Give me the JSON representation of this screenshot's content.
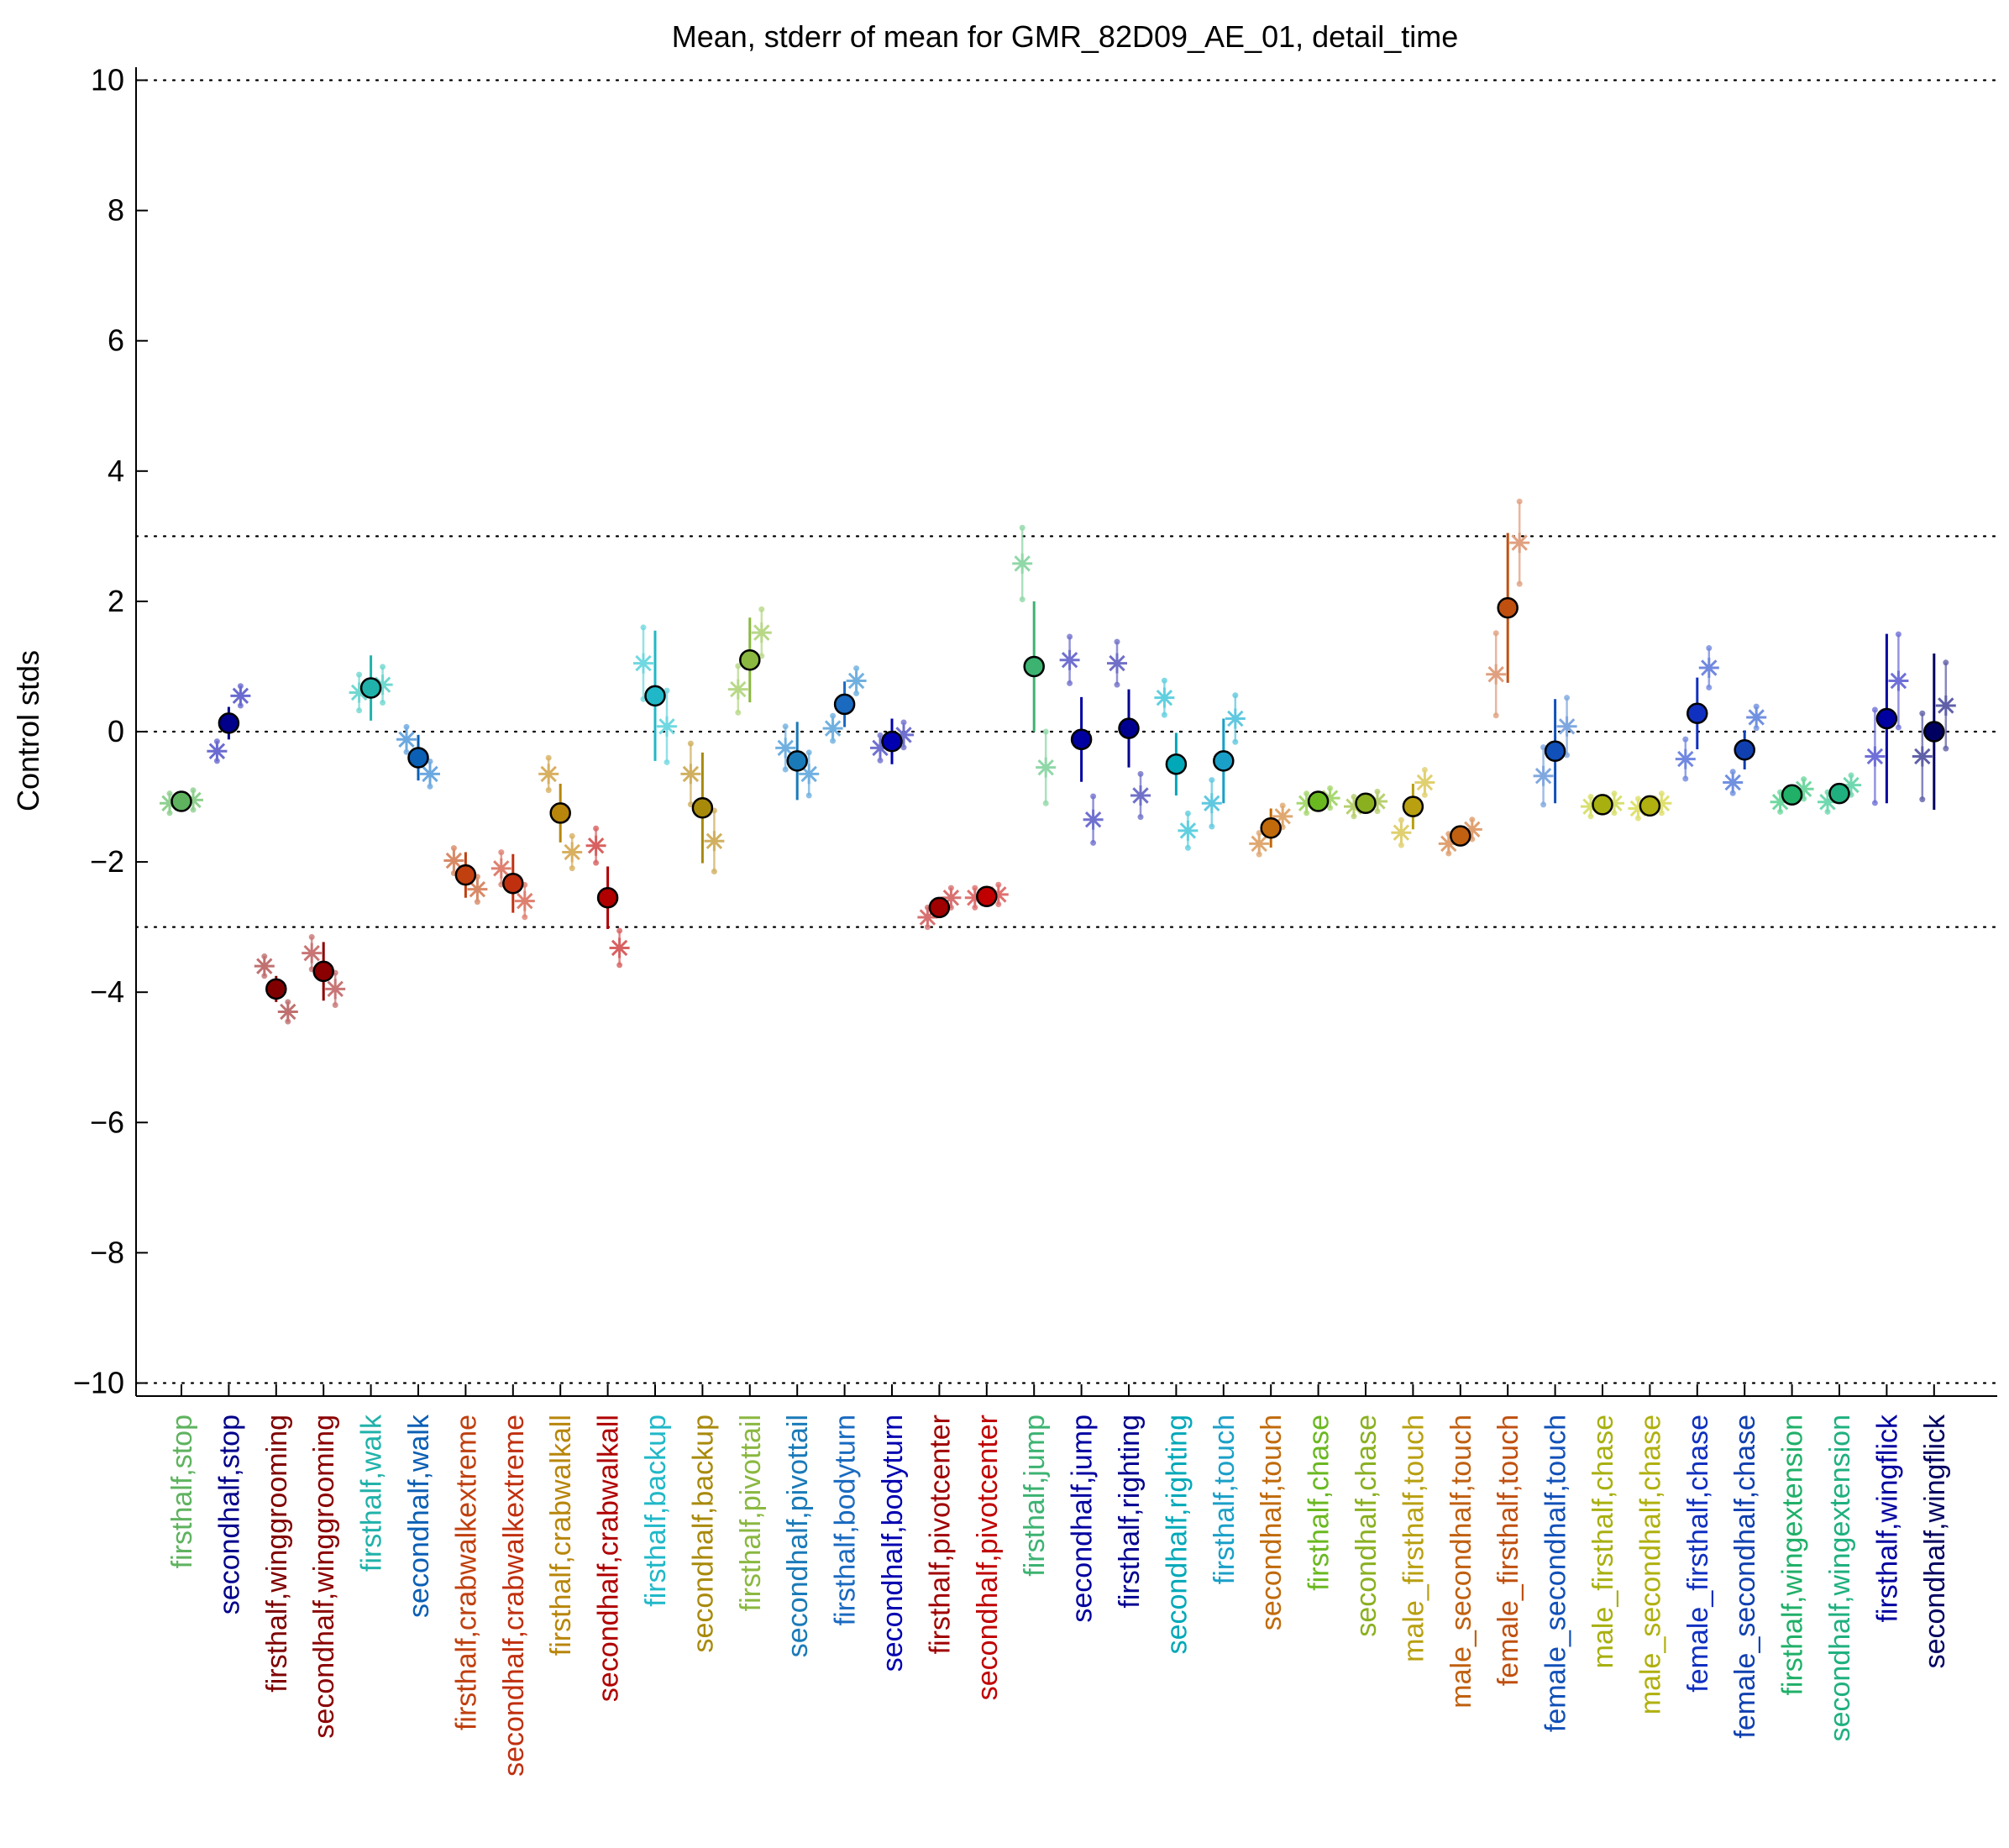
{
  "chart_data": {
    "type": "scatter",
    "title": "Mean, stderr of mean for GMR_82D09_AE_01, detail_time",
    "xlabel": "",
    "ylabel": "Control stds",
    "ylim": [
      -10.2,
      10.2
    ],
    "yticks": [
      -10,
      -8,
      -6,
      -4,
      -2,
      0,
      2,
      4,
      6,
      8,
      10
    ],
    "ytick_labels": [
      "−10",
      "−8",
      "−6",
      "−4",
      "−2",
      "0",
      "2",
      "4",
      "6",
      "8",
      "10"
    ],
    "reference_lines": [
      10,
      3,
      0,
      -3,
      -10
    ],
    "grid": false,
    "legend": "none",
    "categories": [
      {
        "label": "firsthalf,stop",
        "prefix": "firsthalf,",
        "suffix": "stop",
        "suffix_color": "#5fb35f",
        "color": "#5fb35f",
        "mean": -1.07,
        "se": 0.08,
        "flank": [
          -1.1,
          -1.05
        ],
        "flank_color": "#8fd08f"
      },
      {
        "label": "secondhalf,stop",
        "prefix": "secondhalf,",
        "suffix": "stop",
        "suffix_color": "#00008b",
        "color": "#00008b",
        "mean": 0.13,
        "se": 0.25,
        "flank": [
          -0.3,
          0.55
        ],
        "flank_color": "#6a6ad0"
      },
      {
        "label": "firsthalf,winggrooming",
        "prefix": "firsthalf,",
        "suffix": "winggrooming",
        "suffix_color": "#800000",
        "color": "#800000",
        "mean": -3.95,
        "se": 0.2,
        "flank": [
          -3.6,
          -4.3
        ],
        "flank_color": "#c07070"
      },
      {
        "label": "secondhalf,winggrooming",
        "prefix": "secondhalf,",
        "suffix": "winggrooming",
        "suffix_color": "#8b0000",
        "color": "#8b0000",
        "mean": -3.68,
        "se": 0.45,
        "flank": [
          -3.4,
          -3.95
        ],
        "flank_color": "#c97575"
      },
      {
        "label": "firsthalf,walk",
        "prefix": "firsthalf,",
        "suffix": "walk",
        "suffix_color": "#20b2aa",
        "color": "#20b2aa",
        "mean": 0.67,
        "se": 0.5,
        "flank": [
          0.6,
          0.72
        ],
        "flank_color": "#70d8d0"
      },
      {
        "label": "secondhalf,walk",
        "prefix": "secondhalf,",
        "suffix": "walk",
        "suffix_color": "#0b5fb5",
        "color": "#0b5fb5",
        "mean": -0.4,
        "se": 0.35,
        "flank": [
          -0.12,
          -0.65
        ],
        "flank_color": "#6ca8e0"
      },
      {
        "label": "firsthalf,crabwalkextreme",
        "prefix": "firsthalf,",
        "suffix": "crabwalkextreme",
        "suffix_color": "#c0400f",
        "color": "#c0400f",
        "mean": -2.2,
        "se": 0.35,
        "flank": [
          -1.98,
          -2.42
        ],
        "flank_color": "#d88a66"
      },
      {
        "label": "secondhalf,crabwalkextreme",
        "prefix": "secondhalf,",
        "suffix": "crabwalkextreme",
        "suffix_color": "#c0300f",
        "color": "#c0300f",
        "mean": -2.33,
        "se": 0.45,
        "flank": [
          -2.1,
          -2.6
        ],
        "flank_color": "#de8070"
      },
      {
        "label": "firsthalf,crabwalkall",
        "prefix": "firsthalf,",
        "suffix": "crabwalkall",
        "suffix_color": "#b8860b",
        "color": "#b8860b",
        "mean": -1.25,
        "se": 0.45,
        "flank": [
          -0.65,
          -1.85
        ],
        "flank_color": "#d8b060"
      },
      {
        "label": "secondhalf,crabwalkall",
        "prefix": "secondhalf,",
        "suffix": "crabwalkall",
        "suffix_color": "#b00000",
        "color": "#b00000",
        "mean": -2.55,
        "se": 0.48,
        "flank": [
          -1.75,
          -3.32
        ],
        "flank_color": "#d86060"
      },
      {
        "label": "firsthalf,backup",
        "prefix": "firsthalf,",
        "suffix": "backup",
        "suffix_color": "#20b8c8",
        "color": "#20b8c8",
        "mean": 0.55,
        "se": 1.0,
        "flank": [
          1.05,
          0.08
        ],
        "flank_color": "#70d8e0"
      },
      {
        "label": "secondhalf,backup",
        "prefix": "secondhalf,",
        "suffix": "backup",
        "suffix_color": "#a88a0b",
        "color": "#a88a0b",
        "mean": -1.17,
        "se": 0.85,
        "flank": [
          -0.65,
          -1.68
        ],
        "flank_color": "#d0b060"
      },
      {
        "label": "firsthalf,pivottail",
        "prefix": "firsthalf,",
        "suffix": "pivottail",
        "suffix_color": "#8ab840",
        "color": "#8ab840",
        "mean": 1.1,
        "se": 0.65,
        "flank": [
          0.65,
          1.52
        ],
        "flank_color": "#b8d888"
      },
      {
        "label": "secondhalf,pivottail",
        "prefix": "secondhalf,",
        "suffix": "pivottail",
        "suffix_color": "#1a7ab8",
        "color": "#1a7ab8",
        "mean": -0.45,
        "se": 0.6,
        "flank": [
          -0.25,
          -0.65
        ],
        "flank_color": "#70b0e0"
      },
      {
        "label": "firsthalf,bodyturn",
        "prefix": "firsthalf,",
        "suffix": "bodyturn",
        "suffix_color": "#1a6ac0",
        "color": "#1a6ac0",
        "mean": 0.42,
        "se": 0.35,
        "flank": [
          0.05,
          0.78
        ],
        "flank_color": "#70b0e0"
      },
      {
        "label": "secondhalf,bodyturn",
        "prefix": "secondhalf,",
        "suffix": "bodyturn",
        "suffix_color": "#0000b0",
        "color": "#0000b0",
        "mean": -0.15,
        "se": 0.35,
        "flank": [
          -0.25,
          -0.05
        ],
        "flank_color": "#7070d0"
      },
      {
        "label": "firsthalf,pivotcenter",
        "prefix": "firsthalf,",
        "suffix": "pivotcenter",
        "suffix_color": "#a00000",
        "color": "#a00000",
        "mean": -2.7,
        "se": 0.12,
        "flank": [
          -2.85,
          -2.55
        ],
        "flank_color": "#d87070"
      },
      {
        "label": "secondhalf,pivotcenter",
        "prefix": "secondhalf,",
        "suffix": "pivotcenter",
        "suffix_color": "#c00000",
        "color": "#c00000",
        "mean": -2.53,
        "se": 0.12,
        "flank": [
          -2.55,
          -2.5
        ],
        "flank_color": "#e07070"
      },
      {
        "label": "firsthalf,jump",
        "prefix": "firsthalf,",
        "suffix": "jump",
        "suffix_color": "#3cb371",
        "color": "#3cb371",
        "mean": 1.0,
        "se": 1.0,
        "flank": [
          2.58,
          -0.55
        ],
        "flank_color": "#90d8a8"
      },
      {
        "label": "secondhalf,jump",
        "prefix": "secondhalf,",
        "suffix": "jump",
        "suffix_color": "#0000a0",
        "color": "#0000a0",
        "mean": -0.12,
        "se": 0.65,
        "flank": [
          1.1,
          -1.35
        ],
        "flank_color": "#7070d0"
      },
      {
        "label": "firsthalf,righting",
        "prefix": "firsthalf,",
        "suffix": "righting",
        "suffix_color": "#000090",
        "color": "#000090",
        "mean": 0.05,
        "se": 0.6,
        "flank": [
          1.05,
          -0.98
        ],
        "flank_color": "#7070c8"
      },
      {
        "label": "secondhalf,righting",
        "prefix": "secondhalf,",
        "suffix": "righting",
        "suffix_color": "#00a8b8",
        "color": "#00a8b8",
        "mean": -0.5,
        "se": 0.48,
        "flank": [
          0.52,
          -1.52
        ],
        "flank_color": "#60d0e0"
      },
      {
        "label": "firsthalf,touch",
        "prefix": "firsthalf,",
        "suffix": "touch",
        "suffix_color": "#1aa0c8",
        "color": "#1aa0c8",
        "mean": -0.45,
        "se": 0.65,
        "flank": [
          -1.1,
          0.2
        ],
        "flank_color": "#60c8e0"
      },
      {
        "label": "secondhalf,touch",
        "prefix": "secondhalf,",
        "suffix": "touch",
        "suffix_color": "#c06a0b",
        "color": "#c06a0b",
        "mean": -1.48,
        "se": 0.3,
        "flank": [
          -1.72,
          -1.3
        ],
        "flank_color": "#e0a870"
      },
      {
        "label": "firsthalf,chase",
        "prefix": "firsthalf,",
        "suffix": "chase",
        "suffix_color": "#6ab820",
        "color": "#6ab820",
        "mean": -1.07,
        "se": 0.05,
        "flank": [
          -1.1,
          -1.02
        ],
        "flank_color": "#a8d870"
      },
      {
        "label": "secondhalf,chase",
        "prefix": "secondhalf,",
        "suffix": "chase",
        "suffix_color": "#8ab020",
        "color": "#8ab020",
        "mean": -1.1,
        "se": 0.05,
        "flank": [
          -1.15,
          -1.07
        ],
        "flank_color": "#b8d070"
      },
      {
        "label": "male_firsthalf,touch",
        "prefix": "male_firsthalf,",
        "suffix": "touch",
        "suffix_color": "#b8a010",
        "color": "#b8a010",
        "mean": -1.15,
        "se": 0.35,
        "flank": [
          -1.55,
          -0.78
        ],
        "flank_color": "#e0d070"
      },
      {
        "label": "male_secondhalf,touch",
        "prefix": "male_secondhalf,",
        "suffix": "touch",
        "suffix_color": "#c06010",
        "color": "#c06010",
        "mean": -1.6,
        "se": 0.12,
        "flank": [
          -1.72,
          -1.5
        ],
        "flank_color": "#e0a070"
      },
      {
        "label": "female_firsthalf,touch",
        "prefix": "female_firsthalf,",
        "suffix": "touch",
        "suffix_color": "#c05010",
        "color": "#c05010",
        "mean": 1.9,
        "se": 1.15,
        "flank": [
          0.88,
          2.9
        ],
        "flank_color": "#e0a080"
      },
      {
        "label": "female_secondhalf,touch",
        "prefix": "female_secondhalf,",
        "suffix": "touch",
        "suffix_color": "#1050b8",
        "color": "#1050b8",
        "mean": -0.3,
        "se": 0.8,
        "flank": [
          -0.68,
          0.08
        ],
        "flank_color": "#80a8e0"
      },
      {
        "label": "male_firsthalf,chase",
        "prefix": "male_firsthalf,",
        "suffix": "chase",
        "suffix_color": "#a8b010",
        "color": "#a8b010",
        "mean": -1.12,
        "se": 0.04,
        "flank": [
          -1.15,
          -1.1
        ],
        "flank_color": "#d8e070"
      },
      {
        "label": "male_secondhalf,chase",
        "prefix": "male_secondhalf,",
        "suffix": "chase",
        "suffix_color": "#b0b010",
        "color": "#b0b010",
        "mean": -1.14,
        "se": 0.04,
        "flank": [
          -1.18,
          -1.1
        ],
        "flank_color": "#e0e070"
      },
      {
        "label": "female_firsthalf,chase",
        "prefix": "female_firsthalf,",
        "suffix": "chase",
        "suffix_color": "#1030c0",
        "color": "#1030c0",
        "mean": 0.28,
        "se": 0.55,
        "flank": [
          -0.42,
          0.98
        ],
        "flank_color": "#7088e0"
      },
      {
        "label": "female_secondhalf,chase",
        "prefix": "female_secondhalf,",
        "suffix": "chase",
        "suffix_color": "#1040b0",
        "color": "#1040b0",
        "mean": -0.28,
        "se": 0.3,
        "flank": [
          -0.78,
          0.22
        ],
        "flank_color": "#7090e0"
      },
      {
        "label": "firsthalf,wingextension",
        "prefix": "firsthalf,",
        "suffix": "wingextension",
        "suffix_color": "#20b068",
        "color": "#20b068",
        "mean": -0.97,
        "se": 0.05,
        "flank": [
          -1.08,
          -0.88
        ],
        "flank_color": "#70d8a0"
      },
      {
        "label": "secondhalf,wingextension",
        "prefix": "secondhalf,",
        "suffix": "wingextension",
        "suffix_color": "#20b080",
        "color": "#20b080",
        "mean": -0.95,
        "se": 0.05,
        "flank": [
          -1.08,
          -0.82
        ],
        "flank_color": "#70d8b0"
      },
      {
        "label": "firsthalf,wingflick",
        "prefix": "firsthalf,",
        "suffix": "wingflick",
        "suffix_color": "#0000a0",
        "color": "#0000a0",
        "mean": 0.2,
        "se": 1.3,
        "flank": [
          -0.38,
          0.78
        ],
        "flank_color": "#7070d8"
      },
      {
        "label": "secondhalf,wingflick",
        "prefix": "secondhalf,",
        "suffix": "wingflick",
        "suffix_color": "#000060",
        "color": "#000060",
        "mean": 0.0,
        "se": 1.2,
        "flank": [
          -0.38,
          0.4
        ],
        "flank_color": "#6060a8"
      }
    ]
  }
}
